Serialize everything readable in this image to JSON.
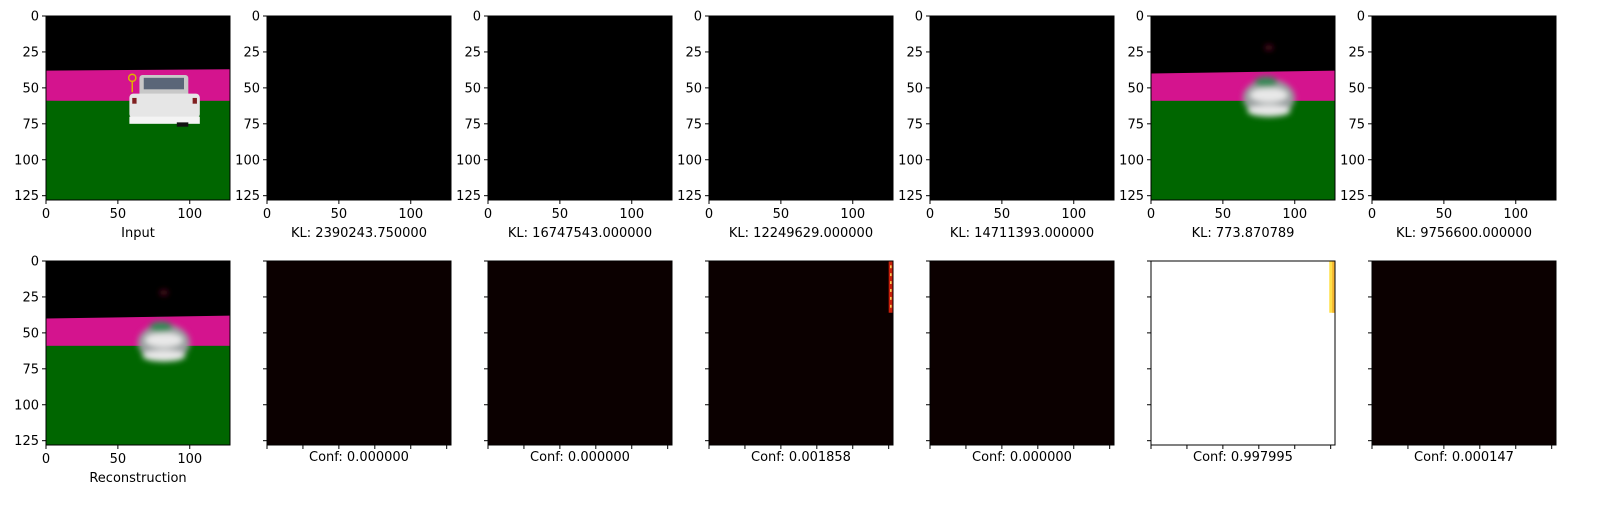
{
  "chart_data": {
    "type": "image_grid",
    "rows": 2,
    "cols": 7,
    "image_extent": [
      0,
      128
    ],
    "ticks": [
      0,
      25,
      50,
      75,
      100,
      125
    ],
    "x_ticks": [
      0,
      50,
      100
    ],
    "colors": {
      "black": "#000000",
      "magenta": "#d4148e",
      "green": "#006600",
      "heat_low": "#0b0000",
      "heat_red": "#c81e0a",
      "heat_high": "#fff6b0",
      "white": "#ffffff"
    },
    "top_row": [
      {
        "caption": "Input",
        "content": "input"
      },
      {
        "caption": "KL: 2390243.750000",
        "content": "black"
      },
      {
        "caption": "KL: 16747543.000000",
        "content": "black"
      },
      {
        "caption": "KL: 12249629.000000",
        "content": "black"
      },
      {
        "caption": "KL: 14711393.000000",
        "content": "black"
      },
      {
        "caption": "KL: 773.870789",
        "content": "blurred"
      },
      {
        "caption": "KL: 9756600.000000",
        "content": "black"
      }
    ],
    "bottom_row": [
      {
        "caption": "Reconstruction",
        "content": "blurred",
        "confidence": null
      },
      {
        "caption": "Conf: 0.000000",
        "content": "heat_low",
        "confidence": 0.0
      },
      {
        "caption": "Conf: 0.000000",
        "content": "heat_low",
        "confidence": 0.0
      },
      {
        "caption": "Conf: 0.001858",
        "content": "heat_low_edge",
        "confidence": 0.001858
      },
      {
        "caption": "Conf: 0.000000",
        "content": "heat_low",
        "confidence": 0.0
      },
      {
        "caption": "Conf: 0.997995",
        "content": "white_edge",
        "confidence": 0.997995
      },
      {
        "caption": "Conf: 0.000147",
        "content": "heat_low",
        "confidence": 0.000147
      }
    ]
  }
}
